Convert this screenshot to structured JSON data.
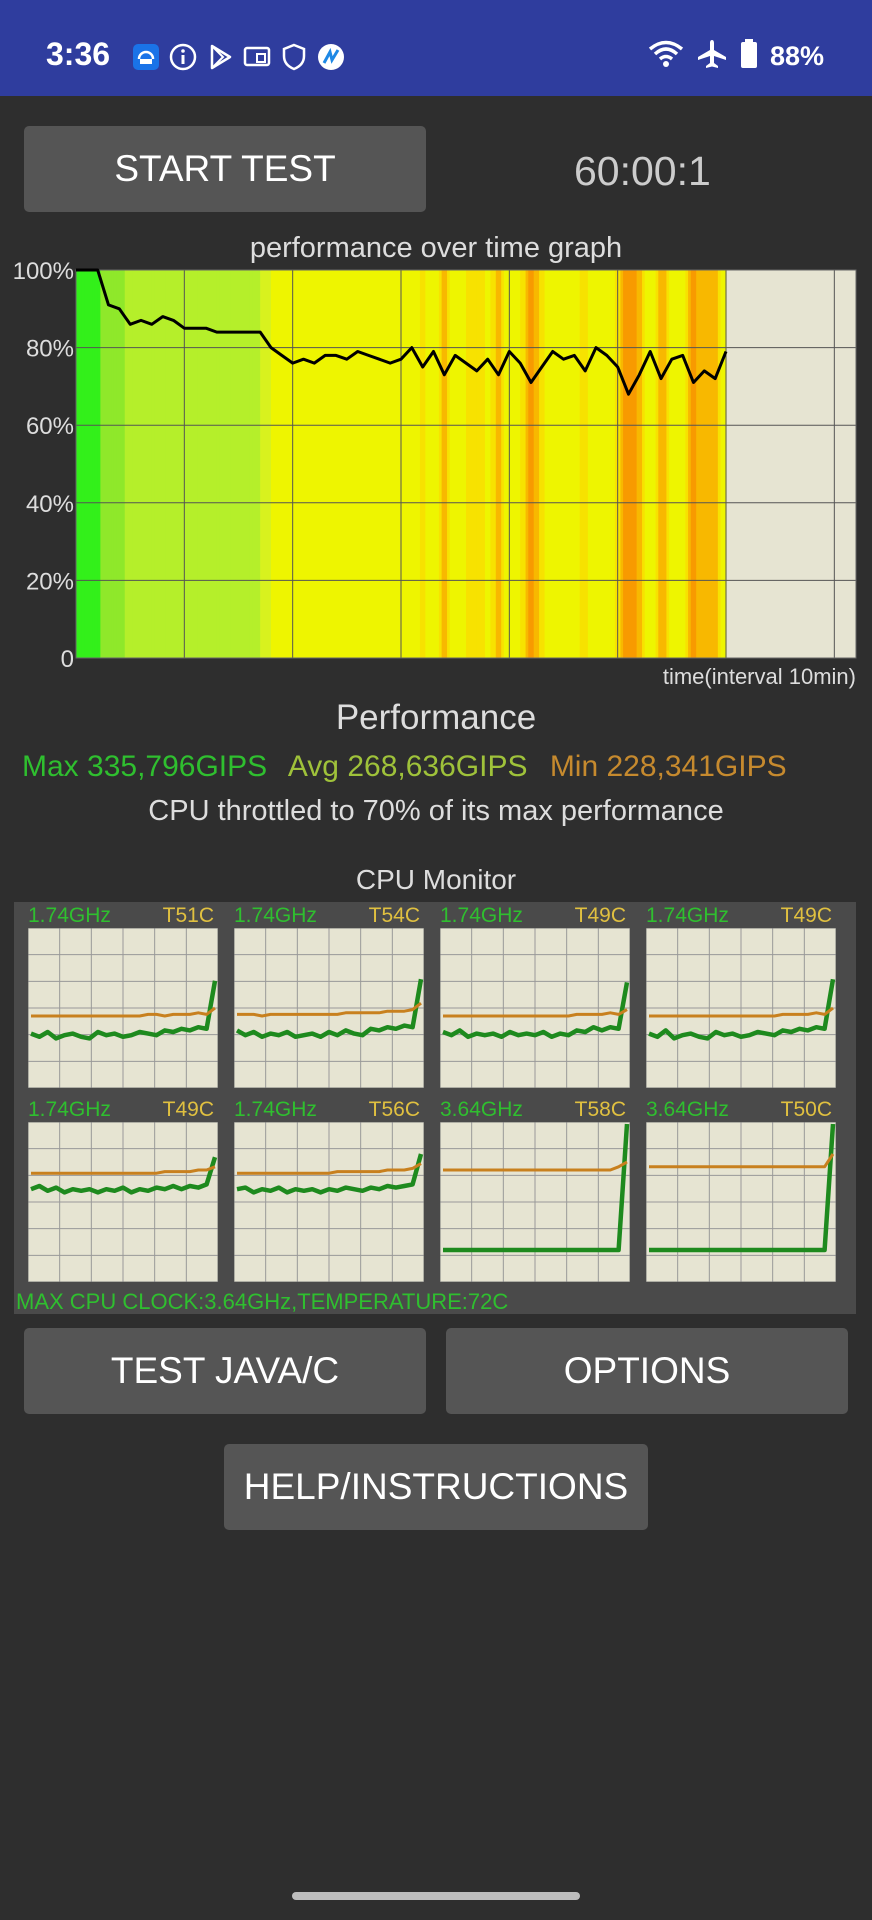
{
  "status_bar": {
    "time": "3:36",
    "battery_text": "88%",
    "icons": [
      "rcs-message-icon",
      "info-icon",
      "play-store-icon",
      "cast-icon",
      "shield-icon",
      "app-badge-icon",
      "wifi-icon",
      "airplane-icon",
      "battery-icon"
    ]
  },
  "controls": {
    "start_test_label": "START TEST",
    "timer": "60:00:1",
    "test_java_label": "TEST JAVA/C",
    "options_label": "OPTIONS",
    "help_label": "HELP/INSTRUCTIONS"
  },
  "colors": {
    "status_bar": "#2f3d9e",
    "background": "#2e2e2e",
    "button": "#555555",
    "max": "#2fbf2f",
    "avg": "#9fc23a",
    "min": "#c68a2e",
    "temp": "#e0c040",
    "graph_bg": "#e6e4d2"
  },
  "chart_data": {
    "type": "area",
    "title": "performance over time graph",
    "xlabel": "time(interval 10min)",
    "ylabel": "",
    "ylim": [
      0,
      100
    ],
    "yticks": [
      "100%",
      "80%",
      "60%",
      "40%",
      "20%",
      "0"
    ],
    "xlim_minutes": [
      0,
      60
    ],
    "grid": true,
    "series": [
      {
        "x": [
          0,
          2,
          3,
          4,
          5,
          6,
          7,
          8,
          9,
          10,
          11,
          12,
          13,
          14,
          15,
          16,
          17,
          18,
          19,
          20,
          21,
          22,
          23,
          24,
          25,
          26,
          27,
          28,
          29,
          30,
          31,
          32,
          33,
          34,
          35,
          36,
          37,
          38,
          39,
          40,
          41,
          42,
          43,
          44,
          45,
          46,
          47,
          48,
          49,
          50,
          51,
          52,
          53,
          54,
          55,
          56,
          57,
          58,
          59,
          60
        ],
        "values": [
          100,
          100,
          91,
          90,
          86,
          87,
          86,
          88,
          87,
          85,
          85,
          85,
          84,
          84,
          84,
          84,
          84,
          80,
          78,
          76,
          77,
          76,
          78,
          78,
          77,
          79,
          78,
          77,
          76,
          77,
          80,
          75,
          79,
          73,
          78,
          76,
          74,
          77,
          73,
          79,
          76,
          71,
          75,
          79,
          77,
          78,
          74,
          80,
          78,
          75,
          68,
          73,
          79,
          72,
          77,
          78,
          71,
          74,
          72,
          79
        ]
      }
    ]
  },
  "performance": {
    "title": "Performance",
    "max_text": "Max 335,796GIPS",
    "avg_text": "Avg 268,636GIPS",
    "min_text": "Min 228,341GIPS",
    "throttle_text": "CPU throttled to 70% of its max performance"
  },
  "cpu_monitor": {
    "title": "CPU Monitor",
    "footer": "MAX CPU CLOCK:3.64GHz,TEMPERATURE:72C",
    "cores": [
      {
        "freq": "1.74GHz",
        "temp": "T51C"
      },
      {
        "freq": "1.74GHz",
        "temp": "T54C"
      },
      {
        "freq": "1.74GHz",
        "temp": "T49C"
      },
      {
        "freq": "1.74GHz",
        "temp": "T49C"
      },
      {
        "freq": "1.74GHz",
        "temp": "T49C"
      },
      {
        "freq": "1.74GHz",
        "temp": "T56C"
      },
      {
        "freq": "3.64GHz",
        "temp": "T58C"
      },
      {
        "freq": "3.64GHz",
        "temp": "T50C"
      }
    ],
    "small_chart_data": [
      {
        "type": "line",
        "series": [
          {
            "values": [
              0.34,
              0.32,
              0.35,
              0.31,
              0.33,
              0.34,
              0.32,
              0.31,
              0.35,
              0.33,
              0.34,
              0.32,
              0.33,
              0.35,
              0.34,
              0.33,
              0.36,
              0.35,
              0.37,
              0.36,
              0.38,
              0.37,
              0.67
            ]
          },
          {
            "values": [
              0.45,
              0.45,
              0.45,
              0.45,
              0.45,
              0.45,
              0.45,
              0.45,
              0.45,
              0.45,
              0.45,
              0.45,
              0.45,
              0.45,
              0.46,
              0.46,
              0.45,
              0.46,
              0.46,
              0.46,
              0.47,
              0.46,
              0.5
            ]
          }
        ]
      },
      {
        "type": "line",
        "series": [
          {
            "values": [
              0.36,
              0.33,
              0.35,
              0.32,
              0.34,
              0.33,
              0.35,
              0.32,
              0.33,
              0.34,
              0.32,
              0.35,
              0.33,
              0.36,
              0.34,
              0.33,
              0.37,
              0.36,
              0.38,
              0.37,
              0.39,
              0.38,
              0.68
            ]
          },
          {
            "values": [
              0.46,
              0.46,
              0.46,
              0.45,
              0.46,
              0.46,
              0.46,
              0.46,
              0.46,
              0.46,
              0.46,
              0.46,
              0.46,
              0.47,
              0.47,
              0.47,
              0.47,
              0.47,
              0.48,
              0.48,
              0.48,
              0.49,
              0.53
            ]
          }
        ]
      },
      {
        "type": "line",
        "series": [
          {
            "values": [
              0.35,
              0.33,
              0.36,
              0.32,
              0.34,
              0.33,
              0.34,
              0.32,
              0.35,
              0.33,
              0.34,
              0.33,
              0.35,
              0.32,
              0.34,
              0.33,
              0.36,
              0.35,
              0.38,
              0.36,
              0.38,
              0.37,
              0.66
            ]
          },
          {
            "values": [
              0.45,
              0.45,
              0.45,
              0.45,
              0.45,
              0.45,
              0.45,
              0.45,
              0.45,
              0.45,
              0.45,
              0.45,
              0.45,
              0.45,
              0.45,
              0.45,
              0.46,
              0.46,
              0.46,
              0.46,
              0.47,
              0.46,
              0.49
            ]
          }
        ]
      },
      {
        "type": "line",
        "series": [
          {
            "values": [
              0.34,
              0.32,
              0.36,
              0.31,
              0.33,
              0.34,
              0.32,
              0.31,
              0.35,
              0.33,
              0.34,
              0.32,
              0.33,
              0.35,
              0.34,
              0.33,
              0.36,
              0.35,
              0.37,
              0.36,
              0.38,
              0.37,
              0.68
            ]
          },
          {
            "values": [
              0.45,
              0.45,
              0.45,
              0.45,
              0.45,
              0.45,
              0.45,
              0.45,
              0.45,
              0.45,
              0.45,
              0.45,
              0.45,
              0.45,
              0.45,
              0.45,
              0.46,
              0.46,
              0.46,
              0.46,
              0.47,
              0.46,
              0.5
            ]
          }
        ]
      },
      {
        "type": "line",
        "series": [
          {
            "values": [
              0.58,
              0.6,
              0.57,
              0.59,
              0.56,
              0.58,
              0.57,
              0.58,
              0.56,
              0.58,
              0.57,
              0.59,
              0.56,
              0.58,
              0.57,
              0.59,
              0.58,
              0.6,
              0.58,
              0.6,
              0.59,
              0.61,
              0.78
            ]
          },
          {
            "values": [
              0.68,
              0.68,
              0.68,
              0.68,
              0.68,
              0.68,
              0.68,
              0.68,
              0.68,
              0.68,
              0.68,
              0.68,
              0.68,
              0.68,
              0.68,
              0.68,
              0.69,
              0.69,
              0.69,
              0.69,
              0.7,
              0.7,
              0.72
            ]
          }
        ]
      },
      {
        "type": "line",
        "series": [
          {
            "values": [
              0.58,
              0.59,
              0.56,
              0.58,
              0.57,
              0.59,
              0.56,
              0.58,
              0.57,
              0.58,
              0.56,
              0.58,
              0.57,
              0.59,
              0.58,
              0.57,
              0.59,
              0.58,
              0.6,
              0.59,
              0.6,
              0.61,
              0.8
            ]
          },
          {
            "values": [
              0.68,
              0.68,
              0.68,
              0.68,
              0.68,
              0.68,
              0.68,
              0.68,
              0.68,
              0.68,
              0.68,
              0.68,
              0.69,
              0.69,
              0.69,
              0.69,
              0.69,
              0.69,
              0.7,
              0.7,
              0.7,
              0.71,
              0.74
            ]
          }
        ]
      },
      {
        "type": "line",
        "series": [
          {
            "values": [
              0.2,
              0.2,
              0.2,
              0.2,
              0.2,
              0.2,
              0.2,
              0.2,
              0.2,
              0.2,
              0.2,
              0.2,
              0.2,
              0.2,
              0.2,
              0.2,
              0.2,
              0.2,
              0.2,
              0.2,
              0.2,
              0.2,
              1.0
            ]
          },
          {
            "values": [
              0.7,
              0.7,
              0.7,
              0.7,
              0.7,
              0.7,
              0.7,
              0.7,
              0.7,
              0.7,
              0.7,
              0.7,
              0.7,
              0.7,
              0.7,
              0.7,
              0.7,
              0.7,
              0.7,
              0.7,
              0.7,
              0.72,
              0.75
            ]
          }
        ]
      },
      {
        "type": "line",
        "series": [
          {
            "values": [
              0.2,
              0.2,
              0.2,
              0.2,
              0.2,
              0.2,
              0.2,
              0.2,
              0.2,
              0.2,
              0.2,
              0.2,
              0.2,
              0.2,
              0.2,
              0.2,
              0.2,
              0.2,
              0.2,
              0.2,
              0.2,
              0.2,
              1.0
            ]
          },
          {
            "values": [
              0.72,
              0.72,
              0.72,
              0.72,
              0.72,
              0.72,
              0.72,
              0.72,
              0.72,
              0.72,
              0.72,
              0.72,
              0.72,
              0.72,
              0.72,
              0.72,
              0.72,
              0.72,
              0.72,
              0.72,
              0.72,
              0.72,
              0.8
            ]
          }
        ]
      }
    ]
  }
}
